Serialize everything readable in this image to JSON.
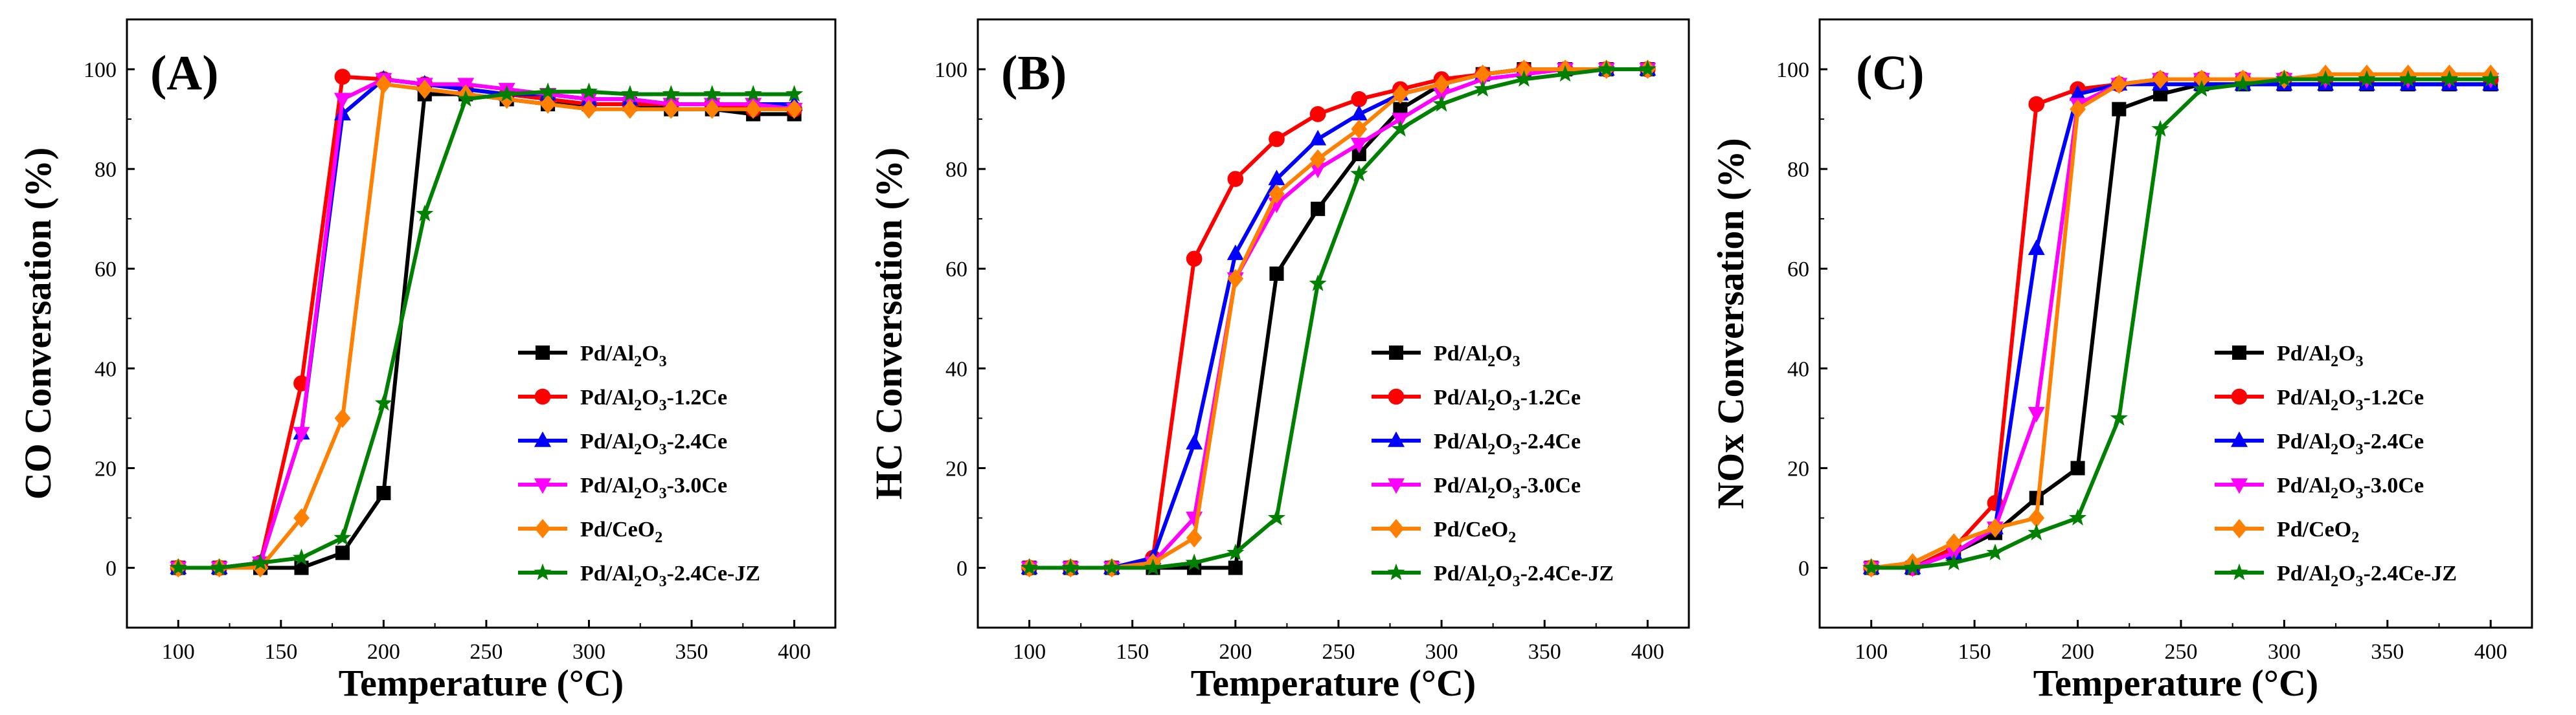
{
  "chart_data": [
    {
      "type": "line",
      "panel_label": "(A)",
      "title": "",
      "xlabel": "Temperature (°C)",
      "ylabel": "CO Conversation (%)",
      "xlim": [
        75,
        420
      ],
      "ylim": [
        -12,
        110
      ],
      "xticks": [
        100,
        150,
        200,
        250,
        300,
        350,
        400
      ],
      "yticks": [
        0,
        20,
        40,
        60,
        80,
        100
      ],
      "legend_position": "bottom-right",
      "x": [
        100,
        120,
        140,
        160,
        180,
        200,
        220,
        240,
        260,
        280,
        300,
        320,
        340,
        360,
        380,
        400
      ],
      "series": [
        {
          "name": "Pd/Al2O3",
          "color": "#000000",
          "marker": "square",
          "values": [
            0,
            0,
            0,
            0,
            3,
            15,
            95,
            95,
            94,
            93,
            93,
            93,
            92,
            92,
            91,
            91
          ]
        },
        {
          "name": "Pd/Al2O3-1.2Ce",
          "color": "#ff0000",
          "marker": "circle",
          "values": [
            0,
            0,
            1,
            37,
            98.5,
            98,
            97,
            96,
            95,
            94,
            93,
            93,
            93,
            93,
            92,
            92
          ]
        },
        {
          "name": "Pd/Al2O3-2.4Ce",
          "color": "#0000ff",
          "marker": "triangle-up",
          "values": [
            0,
            0,
            1,
            27,
            91,
            98,
            97,
            96,
            95,
            95,
            94,
            94,
            93,
            93,
            93,
            93
          ]
        },
        {
          "name": "Pd/Al2O3-3.0Ce",
          "color": "#ff00ff",
          "marker": "triangle-down",
          "values": [
            0,
            0,
            1,
            27,
            94,
            98,
            97,
            97,
            96,
            95,
            94,
            94,
            93,
            93,
            93,
            92
          ]
        },
        {
          "name": "Pd/CeO2",
          "color": "#ff8000",
          "marker": "diamond",
          "values": [
            0,
            0,
            0,
            10,
            30,
            97,
            96,
            95,
            94,
            93,
            92,
            92,
            92,
            92,
            92,
            92
          ]
        },
        {
          "name": "Pd/Al2O3-2.4Ce-JZ",
          "color": "#008000",
          "marker": "star",
          "values": [
            0,
            0,
            1,
            2,
            6,
            33,
            71,
            94,
            95,
            95.5,
            95.5,
            95,
            95,
            95,
            95,
            95
          ]
        }
      ]
    },
    {
      "type": "line",
      "panel_label": "(B)",
      "title": "",
      "xlabel": "Temperature (°C)",
      "ylabel": "HC Conversation (%)",
      "xlim": [
        75,
        420
      ],
      "ylim": [
        -12,
        110
      ],
      "xticks": [
        100,
        150,
        200,
        250,
        300,
        350,
        400
      ],
      "yticks": [
        0,
        20,
        40,
        60,
        80,
        100
      ],
      "legend_position": "bottom-right",
      "x": [
        100,
        120,
        140,
        160,
        180,
        200,
        220,
        240,
        260,
        280,
        300,
        320,
        340,
        360,
        380,
        400
      ],
      "series": [
        {
          "name": "Pd/Al2O3",
          "color": "#000000",
          "marker": "square",
          "values": [
            0,
            0,
            0,
            0,
            0,
            0,
            59,
            72,
            83,
            92,
            97,
            99,
            100,
            100,
            100,
            100
          ]
        },
        {
          "name": "Pd/Al2O3-1.2Ce",
          "color": "#ff0000",
          "marker": "circle",
          "values": [
            0,
            0,
            0,
            2,
            62,
            78,
            86,
            91,
            94,
            96,
            98,
            99,
            100,
            100,
            100,
            100
          ]
        },
        {
          "name": "Pd/Al2O3-2.4Ce",
          "color": "#0000ff",
          "marker": "triangle-up",
          "values": [
            0,
            0,
            0,
            2,
            25,
            63,
            78,
            86,
            91,
            95,
            97,
            99,
            100,
            100,
            100,
            100
          ]
        },
        {
          "name": "Pd/Al2O3-3.0Ce",
          "color": "#ff00ff",
          "marker": "triangle-down",
          "values": [
            0,
            0,
            0,
            1,
            10,
            58,
            73,
            80,
            85,
            90,
            95,
            98,
            99,
            100,
            100,
            100
          ]
        },
        {
          "name": "Pd/CeO2",
          "color": "#ff8000",
          "marker": "diamond",
          "values": [
            0,
            0,
            0,
            1,
            6,
            58,
            75,
            82,
            88,
            95,
            97,
            99,
            100,
            100,
            100,
            100
          ]
        },
        {
          "name": "Pd/Al2O3-2.4Ce-JZ",
          "color": "#008000",
          "marker": "star",
          "values": [
            0,
            0,
            0,
            0,
            1,
            3,
            10,
            57,
            79,
            88,
            93,
            96,
            98,
            99,
            100,
            100
          ]
        }
      ]
    },
    {
      "type": "line",
      "panel_label": "(C)",
      "title": "",
      "xlabel": "Temperature (°C)",
      "ylabel": "NOx Conversation (%)",
      "xlim": [
        75,
        420
      ],
      "ylim": [
        -12,
        110
      ],
      "xticks": [
        100,
        150,
        200,
        250,
        300,
        350,
        400
      ],
      "yticks": [
        0,
        20,
        40,
        60,
        80,
        100
      ],
      "legend_position": "bottom-right",
      "x": [
        100,
        120,
        140,
        160,
        180,
        200,
        220,
        240,
        260,
        280,
        300,
        320,
        340,
        360,
        380,
        400
      ],
      "series": [
        {
          "name": "Pd/Al2O3",
          "color": "#000000",
          "marker": "square",
          "values": [
            0,
            0,
            3,
            7,
            14,
            20,
            92,
            95,
            97,
            97,
            97,
            97,
            97,
            97,
            97,
            97
          ]
        },
        {
          "name": "Pd/Al2O3-1.2Ce",
          "color": "#ff0000",
          "marker": "circle",
          "values": [
            0,
            0,
            4,
            13,
            93,
            96,
            97,
            98,
            98,
            98,
            98,
            98,
            98,
            98,
            98,
            98
          ]
        },
        {
          "name": "Pd/Al2O3-2.4Ce",
          "color": "#0000ff",
          "marker": "triangle-up",
          "values": [
            0,
            0,
            3,
            8,
            64,
            95,
            97,
            97,
            97,
            97,
            97,
            97,
            97,
            97,
            97,
            97
          ]
        },
        {
          "name": "Pd/Al2O3-3.0Ce",
          "color": "#ff00ff",
          "marker": "triangle-down",
          "values": [
            0,
            0,
            3,
            8,
            31,
            93,
            97,
            98,
            98,
            98,
            98,
            98,
            98,
            98,
            98,
            98
          ]
        },
        {
          "name": "Pd/CeO2",
          "color": "#ff8000",
          "marker": "diamond",
          "values": [
            0,
            1,
            5,
            8,
            10,
            92,
            97,
            98,
            98,
            98,
            98,
            99,
            99,
            99,
            99,
            99
          ]
        },
        {
          "name": "Pd/Al2O3-2.4Ce-JZ",
          "color": "#008000",
          "marker": "star",
          "values": [
            0,
            0,
            1,
            3,
            7,
            10,
            30,
            88,
            96,
            97,
            98,
            98,
            98,
            98,
            98,
            98
          ]
        }
      ]
    }
  ],
  "legend_labels": [
    {
      "base": "Pd/Al",
      "sub1": "2",
      "mid": "O",
      "sub2": "3",
      "suffix": ""
    },
    {
      "base": "Pd/Al",
      "sub1": "2",
      "mid": "O",
      "sub2": "3",
      "suffix": "-1.2Ce"
    },
    {
      "base": "Pd/Al",
      "sub1": "2",
      "mid": "O",
      "sub2": "3",
      "suffix": "-2.4Ce"
    },
    {
      "base": "Pd/Al",
      "sub1": "2",
      "mid": "O",
      "sub2": "3",
      "suffix": "-3.0Ce"
    },
    {
      "base": "Pd/CeO",
      "sub1": "2",
      "mid": "",
      "sub2": "",
      "suffix": ""
    },
    {
      "base": "Pd/Al",
      "sub1": "2",
      "mid": "O",
      "sub2": "3",
      "suffix": "-2.4Ce-JZ"
    }
  ]
}
